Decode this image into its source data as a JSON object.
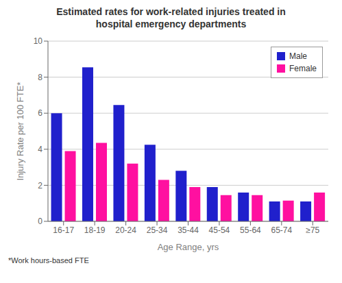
{
  "chart_data": {
    "type": "bar",
    "title": "Estimated rates for work-related injuries treated in\nhospital emergency departments",
    "xlabel": "Age Range, yrs",
    "ylabel": "Injury Rate per 100 FTE*",
    "footnote": "*Work hours-based FTE",
    "categories": [
      "16-17",
      "18-19",
      "20-24",
      "25-34",
      "35-44",
      "45-54",
      "55-64",
      "65-74",
      "≥75"
    ],
    "series": [
      {
        "name": "Male",
        "color": "#2020cc",
        "values": [
          6.0,
          8.55,
          6.45,
          4.25,
          2.8,
          1.9,
          1.6,
          1.1,
          1.1
        ]
      },
      {
        "name": "Female",
        "color": "#ff10a0",
        "values": [
          3.9,
          4.35,
          3.2,
          2.3,
          1.9,
          1.45,
          1.45,
          1.15,
          1.6
        ]
      }
    ],
    "ylim": [
      0,
      10
    ],
    "yticks": [
      0,
      2,
      4,
      6,
      8,
      10
    ],
    "grid": true,
    "legend": "upper right"
  }
}
